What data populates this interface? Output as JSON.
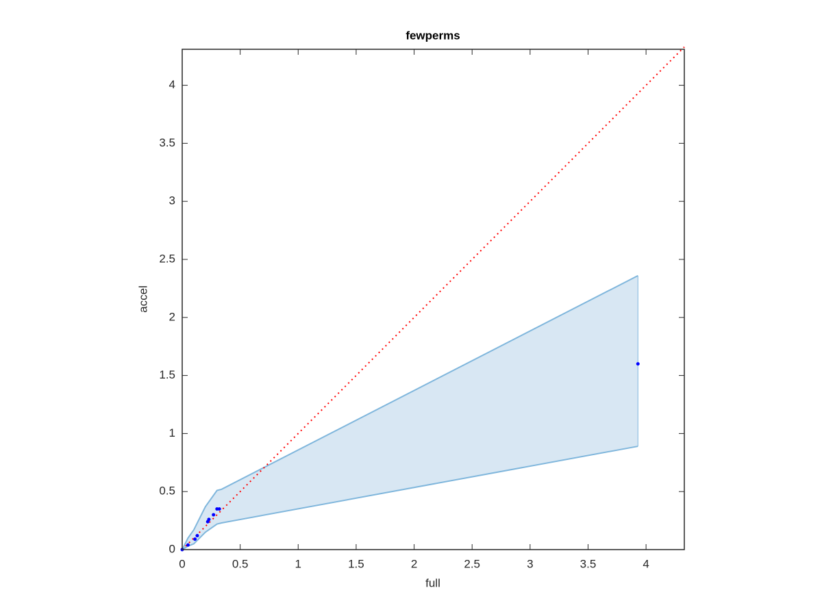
{
  "chart_data": {
    "type": "scatter",
    "title": "fewperms",
    "x_label": "full",
    "y_label": "accel",
    "xlim": [
      0,
      4.33
    ],
    "ylim": [
      0,
      4.31
    ],
    "xticks": [
      0,
      0.5,
      1,
      1.5,
      2,
      2.5,
      3,
      3.5,
      4
    ],
    "yticks": [
      0,
      0.5,
      1,
      1.5,
      2,
      2.5,
      3,
      3.5,
      4
    ],
    "band": {
      "color": "#7fb6dc",
      "fill": "#d8e7f3",
      "x": [
        0,
        0.05,
        0.1,
        0.2,
        0.3,
        0.34,
        3.93
      ],
      "upper": [
        0,
        0.1,
        0.17,
        0.37,
        0.51,
        0.52,
        2.36
      ],
      "lower": [
        0,
        0.03,
        0.05,
        0.15,
        0.22,
        0.23,
        0.89
      ]
    },
    "reference_line": {
      "color": "#ff0000",
      "x": [
        0,
        4.33
      ],
      "y": [
        0,
        4.33
      ]
    },
    "series": [
      {
        "color": "#0000ff",
        "x": [
          0,
          0.05,
          0.11,
          0.13,
          0.22,
          0.23,
          0.27,
          0.3,
          0.32,
          3.93
        ],
        "values": [
          0,
          0.04,
          0.09,
          0.12,
          0.24,
          0.26,
          0.3,
          0.35,
          0.35,
          1.6
        ]
      }
    ]
  }
}
